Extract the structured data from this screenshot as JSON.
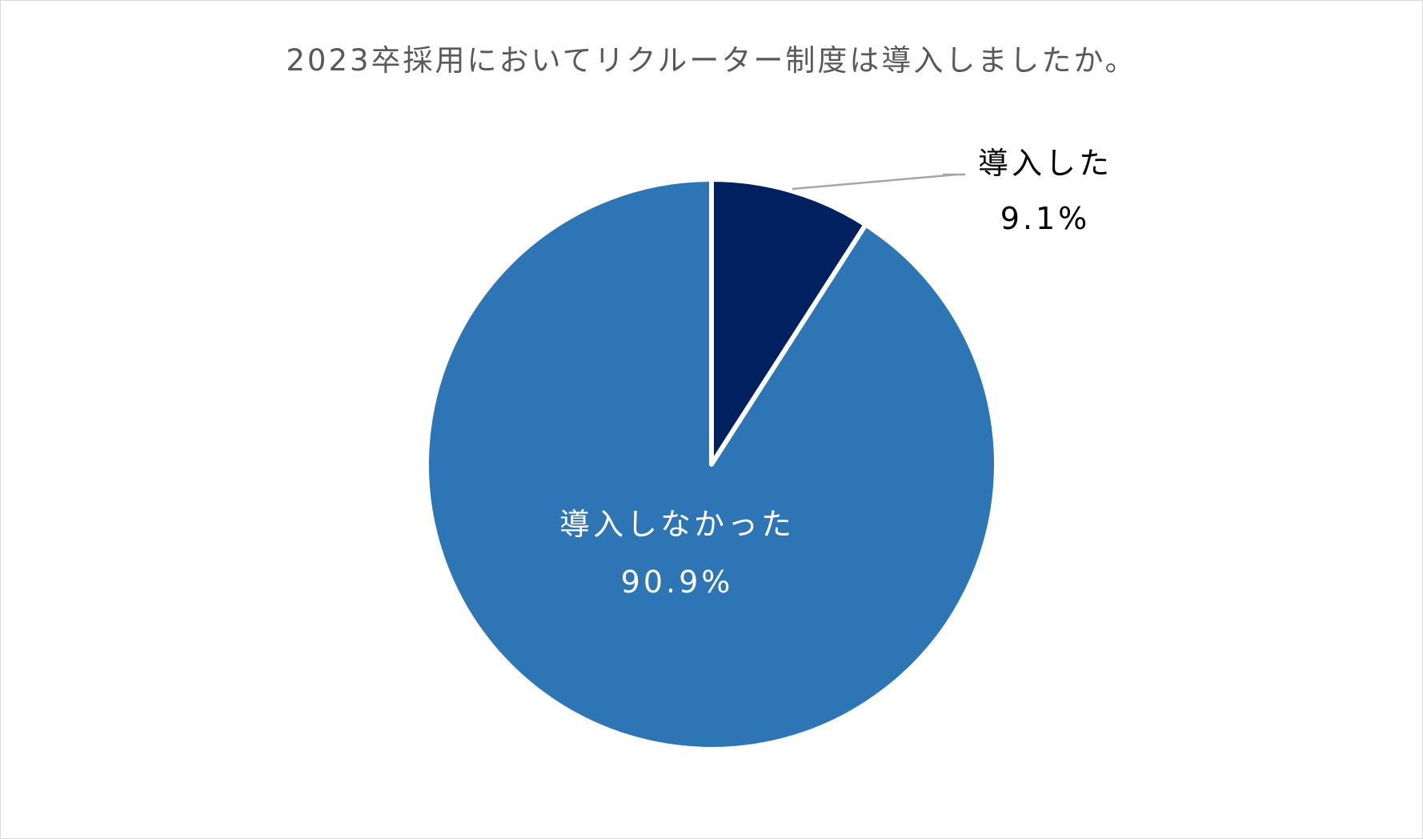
{
  "chart_data": {
    "type": "pie",
    "title": "2023卒採用においてリクルーター制度は導入しましたか。",
    "slices": [
      {
        "label": "導入した",
        "value": 9.1,
        "value_label": "9.1%",
        "color": "#002060",
        "label_color": "#000000"
      },
      {
        "label": "導入しなかった",
        "value": 90.9,
        "value_label": "90.9%",
        "color": "#2e75b6",
        "label_color": "#ffffff"
      }
    ],
    "start_angle": "12 o'clock, clockwise",
    "slice_border_color": "#ffffff",
    "leader_line_color": "#a6a6a6"
  }
}
